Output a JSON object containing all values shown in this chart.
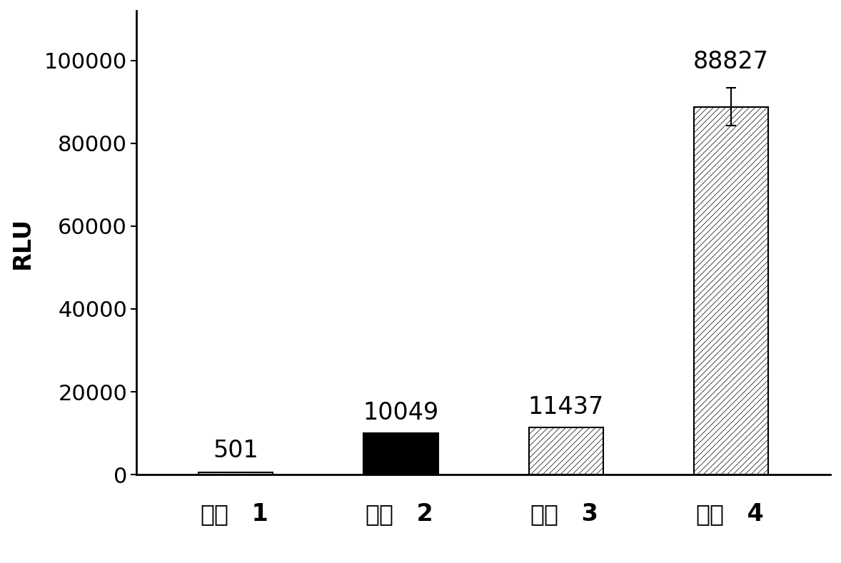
{
  "categories": [
    "探针 1",
    "探针 2",
    "探针 3",
    "探针 4"
  ],
  "values": [
    501,
    10049,
    11437,
    88827
  ],
  "error_bar": [
    0,
    0,
    0,
    4500
  ],
  "value_labels": [
    "501",
    "10049",
    "11437",
    "88827"
  ],
  "ylabel": "RLU",
  "ylim": [
    0,
    112000
  ],
  "yticks": [
    0,
    20000,
    40000,
    60000,
    80000,
    100000
  ],
  "background_color": "#ffffff",
  "bar_width": 0.45,
  "label_fontsize": 24,
  "tick_fontsize": 22,
  "value_fontsize": 24,
  "ylabel_fontsize": 24,
  "hatch_patterns": [
    "....",
    "oooo",
    "////",
    "////"
  ],
  "facecolors": [
    "white",
    "#111111",
    "white",
    "white"
  ],
  "edgecolors": [
    "black",
    "black",
    "black",
    "black"
  ]
}
